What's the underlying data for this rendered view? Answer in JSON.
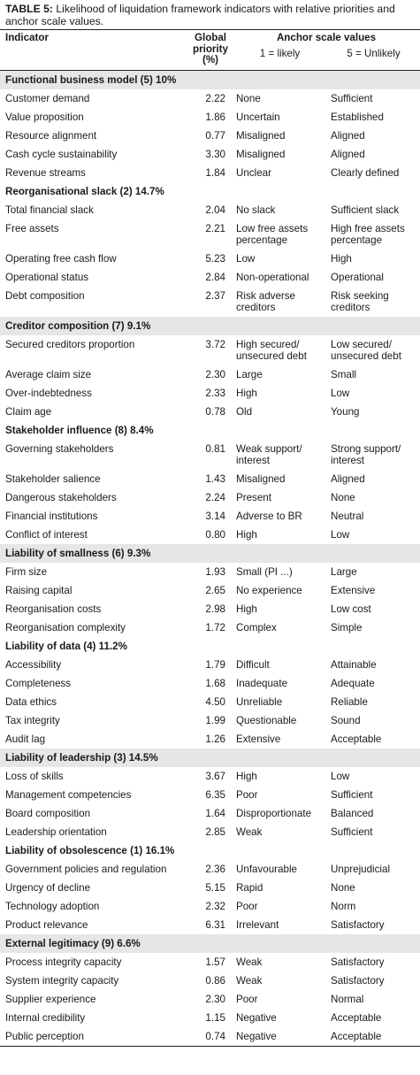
{
  "caption": {
    "label": "TABLE 5:",
    "text": " Likelihood of liquidation framework indicators with relative priorities and anchor scale values."
  },
  "headers": {
    "indicator": "Indicator",
    "global_priority": "Global priority (%)",
    "anchor_scale": "Anchor scale values",
    "likely": "1 = likely",
    "unlikely": "5 = Unlikely"
  },
  "groups": [
    {
      "title": "Functional business model (5) 10%",
      "shaded": true,
      "rows": [
        {
          "indicator": "Customer demand",
          "priority": "2.22",
          "likely": "None",
          "unlikely": "Sufficient"
        },
        {
          "indicator": "Value proposition",
          "priority": "1.86",
          "likely": "Uncertain",
          "unlikely": "Established"
        },
        {
          "indicator": "Resource alignment",
          "priority": "0.77",
          "likely": "Misaligned",
          "unlikely": "Aligned"
        },
        {
          "indicator": "Cash cycle sustainability",
          "priority": "3.30",
          "likely": "Misaligned",
          "unlikely": "Aligned"
        },
        {
          "indicator": "Revenue streams",
          "priority": "1.84",
          "likely": "Unclear",
          "unlikely": "Clearly defined"
        }
      ]
    },
    {
      "title": "Reorganisational slack (2) 14.7%",
      "shaded": false,
      "rows": [
        {
          "indicator": "Total financial slack",
          "priority": "2.04",
          "likely": "No slack",
          "unlikely": "Sufficient slack"
        },
        {
          "indicator": "Free assets",
          "priority": "2.21",
          "likely": "Low free assets percentage",
          "unlikely": "High free assets percentage"
        },
        {
          "indicator": "Operating free cash flow",
          "priority": "5.23",
          "likely": "Low",
          "unlikely": "High"
        },
        {
          "indicator": "Operational status",
          "priority": "2.84",
          "likely": "Non-operational",
          "unlikely": "Operational"
        },
        {
          "indicator": "Debt composition",
          "priority": "2.37",
          "likely": "Risk adverse creditors",
          "unlikely": "Risk seeking creditors"
        }
      ]
    },
    {
      "title": "Creditor composition (7) 9.1%",
      "shaded": true,
      "rows": [
        {
          "indicator": "Secured creditors proportion",
          "priority": "3.72",
          "likely": "High secured/ unsecured debt",
          "unlikely": "Low secured/ unsecured debt"
        },
        {
          "indicator": "Average claim size",
          "priority": "2.30",
          "likely": "Large",
          "unlikely": "Small"
        },
        {
          "indicator": "Over-indebtedness",
          "priority": "2.33",
          "likely": "High",
          "unlikely": "Low"
        },
        {
          "indicator": "Claim age",
          "priority": "0.78",
          "likely": "Old",
          "unlikely": "Young"
        }
      ]
    },
    {
      "title": "Stakeholder influence (8) 8.4%",
      "shaded": false,
      "rows": [
        {
          "indicator": "Governing stakeholders",
          "priority": "0.81",
          "likely": "Weak support/ interest",
          "unlikely": "Strong support/ interest"
        },
        {
          "indicator": "Stakeholder salience",
          "priority": "1.43",
          "likely": "Misaligned",
          "unlikely": "Aligned"
        },
        {
          "indicator": "Dangerous stakeholders",
          "priority": "2.24",
          "likely": "Present",
          "unlikely": "None"
        },
        {
          "indicator": "Financial institutions",
          "priority": "3.14",
          "likely": "Adverse to BR",
          "unlikely": "Neutral"
        },
        {
          "indicator": "Conflict of interest",
          "priority": "0.80",
          "likely": "High",
          "unlikely": "Low"
        }
      ]
    },
    {
      "title": "Liability of smallness (6) 9.3%",
      "shaded": true,
      "rows": [
        {
          "indicator": "Firm size",
          "priority": "1.93",
          "likely": "Small (PI ...)",
          "unlikely": "Large"
        },
        {
          "indicator": "Raising capital",
          "priority": "2.65",
          "likely": "No experience",
          "unlikely": "Extensive"
        },
        {
          "indicator": "Reorganisation costs",
          "priority": "2.98",
          "likely": "High",
          "unlikely": "Low cost"
        },
        {
          "indicator": "Reorganisation complexity",
          "priority": "1.72",
          "likely": "Complex",
          "unlikely": "Simple"
        }
      ]
    },
    {
      "title": "Liability of data (4) 11.2%",
      "shaded": false,
      "rows": [
        {
          "indicator": "Accessibility",
          "priority": "1.79",
          "likely": "Difficult",
          "unlikely": "Attainable"
        },
        {
          "indicator": "Completeness",
          "priority": "1.68",
          "likely": "Inadequate",
          "unlikely": "Adequate"
        },
        {
          "indicator": "Data ethics",
          "priority": "4.50",
          "likely": "Unreliable",
          "unlikely": "Reliable"
        },
        {
          "indicator": "Tax integrity",
          "priority": "1.99",
          "likely": "Questionable",
          "unlikely": "Sound"
        },
        {
          "indicator": "Audit lag",
          "priority": "1.26",
          "likely": "Extensive",
          "unlikely": "Acceptable"
        }
      ]
    },
    {
      "title": "Liability of leadership (3) 14.5%",
      "shaded": true,
      "rows": [
        {
          "indicator": "Loss of skills",
          "priority": "3.67",
          "likely": "High",
          "unlikely": "Low"
        },
        {
          "indicator": "Management competencies",
          "priority": "6.35",
          "likely": "Poor",
          "unlikely": "Sufficient"
        },
        {
          "indicator": "Board composition",
          "priority": "1.64",
          "likely": "Disproportionate",
          "unlikely": "Balanced"
        },
        {
          "indicator": "Leadership orientation",
          "priority": "2.85",
          "likely": "Weak",
          "unlikely": "Sufficient"
        }
      ]
    },
    {
      "title": "Liability of obsolescence (1) 16.1%",
      "shaded": false,
      "rows": [
        {
          "indicator": "Government policies and regulation",
          "priority": "2.36",
          "likely": "Unfavourable",
          "unlikely": "Unprejudicial"
        },
        {
          "indicator": "Urgency of decline",
          "priority": "5.15",
          "likely": "Rapid",
          "unlikely": "None"
        },
        {
          "indicator": "Technology adoption",
          "priority": "2.32",
          "likely": "Poor",
          "unlikely": "Norm"
        },
        {
          "indicator": "Product relevance",
          "priority": "6.31",
          "likely": "Irrelevant",
          "unlikely": "Satisfactory"
        }
      ]
    },
    {
      "title": "External legitimacy (9) 6.6%",
      "shaded": true,
      "rows": [
        {
          "indicator": "Process integrity capacity",
          "priority": "1.57",
          "likely": "Weak",
          "unlikely": "Satisfactory"
        },
        {
          "indicator": "System integrity capacity",
          "priority": "0.86",
          "likely": "Weak",
          "unlikely": "Satisfactory"
        },
        {
          "indicator": "Supplier experience",
          "priority": "2.30",
          "likely": "Poor",
          "unlikely": "Normal"
        },
        {
          "indicator": "Internal credibility",
          "priority": "1.15",
          "likely": "Negative",
          "unlikely": "Acceptable"
        },
        {
          "indicator": "Public perception",
          "priority": "0.74",
          "likely": "Negative",
          "unlikely": "Acceptable"
        }
      ]
    }
  ]
}
